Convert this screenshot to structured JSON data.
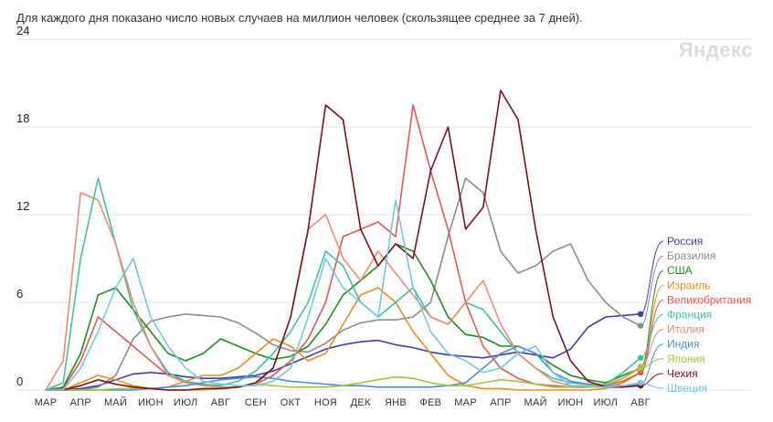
{
  "chart_data": {
    "type": "line",
    "title": "Для каждого дня показано число новых случаев на миллион человек (скользящее среднее за 7 дней).",
    "watermark": "Яндекс",
    "xlabel": "",
    "ylabel": "",
    "ylim": [
      0,
      24
    ],
    "yticks": [
      0,
      6,
      12,
      18,
      24
    ],
    "grid": true,
    "legend_placement": "right",
    "months": [
      "МАР",
      "АПР",
      "МАЙ",
      "ИЮН",
      "ИЮЛ",
      "АВГ",
      "СЕН",
      "ОКТ",
      "НОЯ",
      "ДЕК",
      "ЯНВ",
      "ФЕВ",
      "МАР",
      "АПР",
      "МАЙ",
      "ИЮН",
      "ИЮЛ",
      "АВГ"
    ],
    "x": [
      0,
      0.5,
      1,
      1.5,
      2,
      2.5,
      3,
      3.5,
      4,
      4.5,
      5,
      5.5,
      6,
      6.5,
      7,
      7.5,
      8,
      8.5,
      9,
      9.5,
      10,
      10.5,
      11,
      11.5,
      12,
      12.5,
      13,
      13.5,
      14,
      14.5,
      15,
      15.5,
      16,
      16.5,
      17
    ],
    "series": [
      {
        "name": "Россия",
        "color": "#3e3ea8",
        "values": [
          0,
          0,
          0.1,
          0.3,
          0.7,
          1.1,
          1.2,
          1.1,
          0.9,
          0.8,
          0.8,
          0.9,
          1,
          1.3,
          1.8,
          2.3,
          2.8,
          3.1,
          3.3,
          3.4,
          3.1,
          2.9,
          2.6,
          2.4,
          2.3,
          2.2,
          2.4,
          2.6,
          2.4,
          2.2,
          2.8,
          4.3,
          5,
          5.1,
          5.2
        ]
      },
      {
        "name": "Бразилия",
        "color": "#8c8c8c",
        "values": [
          0,
          0,
          0,
          0.2,
          1,
          3.5,
          4.7,
          5,
          5.2,
          5.1,
          5,
          4.6,
          3.9,
          3.1,
          2.7,
          2.6,
          3.2,
          4.1,
          4.6,
          4.8,
          4.8,
          5,
          6,
          10.5,
          14.5,
          13.5,
          9.5,
          8,
          8.5,
          9.5,
          10,
          7.5,
          6,
          5,
          4.4
        ]
      },
      {
        "name": "США",
        "color": "#1e8c1e",
        "values": [
          0,
          0.2,
          2.5,
          6.5,
          7,
          5.5,
          4,
          2.5,
          2,
          2.5,
          3.5,
          3,
          2.5,
          2.1,
          2.3,
          3,
          4.5,
          6.5,
          7.5,
          8.5,
          10,
          9.5,
          7.5,
          5,
          3.8,
          3.6,
          3,
          3,
          2.5,
          1.7,
          1,
          0.7,
          0.5,
          1,
          1.5
        ]
      },
      {
        "name": "Израиль",
        "color": "#ee8c20",
        "values": [
          0,
          0,
          0.5,
          1,
          0.7,
          0.3,
          0.1,
          0.2,
          0.6,
          1,
          1,
          1.5,
          2.5,
          3.5,
          3,
          2,
          2.5,
          4.5,
          6.5,
          7,
          6,
          4,
          2.5,
          1,
          0.3,
          0.1,
          0.1,
          0,
          0,
          0,
          0,
          0,
          0.1,
          0.5,
          1.2
        ]
      },
      {
        "name": "Великобритания",
        "color": "#e8574f",
        "values": [
          0,
          0.1,
          2,
          5,
          4,
          3,
          2,
          1,
          0.6,
          0.3,
          0.2,
          0.2,
          0.4,
          1,
          2,
          3.5,
          6,
          10.5,
          11,
          11.5,
          10.5,
          19.5,
          15,
          11,
          6,
          3,
          1.5,
          0.8,
          0.4,
          0.3,
          0.2,
          0.2,
          0.3,
          0.6,
          1.2
        ]
      },
      {
        "name": "Франция",
        "color": "#3cc3a0",
        "values": [
          0,
          0.5,
          9,
          14.5,
          10,
          5.5,
          3,
          1.2,
          0.6,
          0.4,
          0.3,
          0.6,
          1.3,
          2.5,
          4,
          6,
          9.5,
          8.5,
          6,
          5,
          6,
          7,
          5,
          4.5,
          6,
          5.5,
          4,
          2.5,
          1.5,
          0.8,
          0.5,
          0.4,
          0.4,
          1.2,
          2.2
        ]
      },
      {
        "name": "Италия",
        "color": "#f08a6e",
        "values": [
          0,
          2,
          13.5,
          13,
          10,
          6,
          3,
          1,
          0.5,
          0.3,
          0.2,
          0.2,
          0.4,
          1.5,
          5,
          11,
          12,
          9,
          7.5,
          9.5,
          8,
          6.5,
          5,
          4.5,
          6,
          7.5,
          4.5,
          2.5,
          1.5,
          0.6,
          0.3,
          0.3,
          0.3,
          0.8,
          1.6
        ]
      },
      {
        "name": "Индия",
        "color": "#4c8ed8",
        "values": [
          0,
          0,
          0,
          0,
          0,
          0,
          0.1,
          0.2,
          0.3,
          0.5,
          0.7,
          0.8,
          0.9,
          0.8,
          0.6,
          0.5,
          0.4,
          0.3,
          0.3,
          0.2,
          0.2,
          0.2,
          0.2,
          0.3,
          0.5,
          1.5,
          2.5,
          3,
          2.5,
          1.2,
          0.6,
          0.4,
          0.3,
          0.3,
          0.4
        ]
      },
      {
        "name": "Япония",
        "color": "#9cc83c",
        "values": [
          0,
          0,
          0,
          0,
          0.1,
          0.1,
          0.1,
          0,
          0,
          0,
          0.1,
          0.2,
          0.4,
          0.3,
          0.2,
          0.2,
          0.2,
          0.3,
          0.5,
          0.7,
          0.9,
          0.8,
          0.5,
          0.3,
          0.3,
          0.5,
          0.7,
          0.6,
          0.4,
          0.2,
          0.2,
          0.3,
          0.4,
          0.8,
          1.5
        ]
      },
      {
        "name": "Чехия",
        "color": "#7b0f1a",
        "values": [
          0,
          0,
          0.3,
          0.7,
          0.4,
          0.2,
          0.1,
          0,
          0,
          0.1,
          0.1,
          0.2,
          0.5,
          1.5,
          5,
          11,
          19.5,
          18.5,
          11,
          8.5,
          10,
          9,
          15,
          18,
          11,
          12.5,
          20.5,
          18.5,
          11,
          5,
          2,
          0.6,
          0.2,
          0.2,
          0.3
        ]
      },
      {
        "name": "Швеция",
        "color": "#73c7e1",
        "values": [
          0,
          0,
          1.5,
          4,
          7,
          9,
          5,
          3,
          1.5,
          0.6,
          0.4,
          0.3,
          0.3,
          0.6,
          1.5,
          5,
          9,
          7,
          6,
          5,
          13,
          7,
          4,
          2.5,
          2,
          1.2,
          1.5,
          2.5,
          3,
          1.2,
          0.3,
          0.2,
          0.2,
          0.3,
          0.5
        ]
      }
    ]
  }
}
